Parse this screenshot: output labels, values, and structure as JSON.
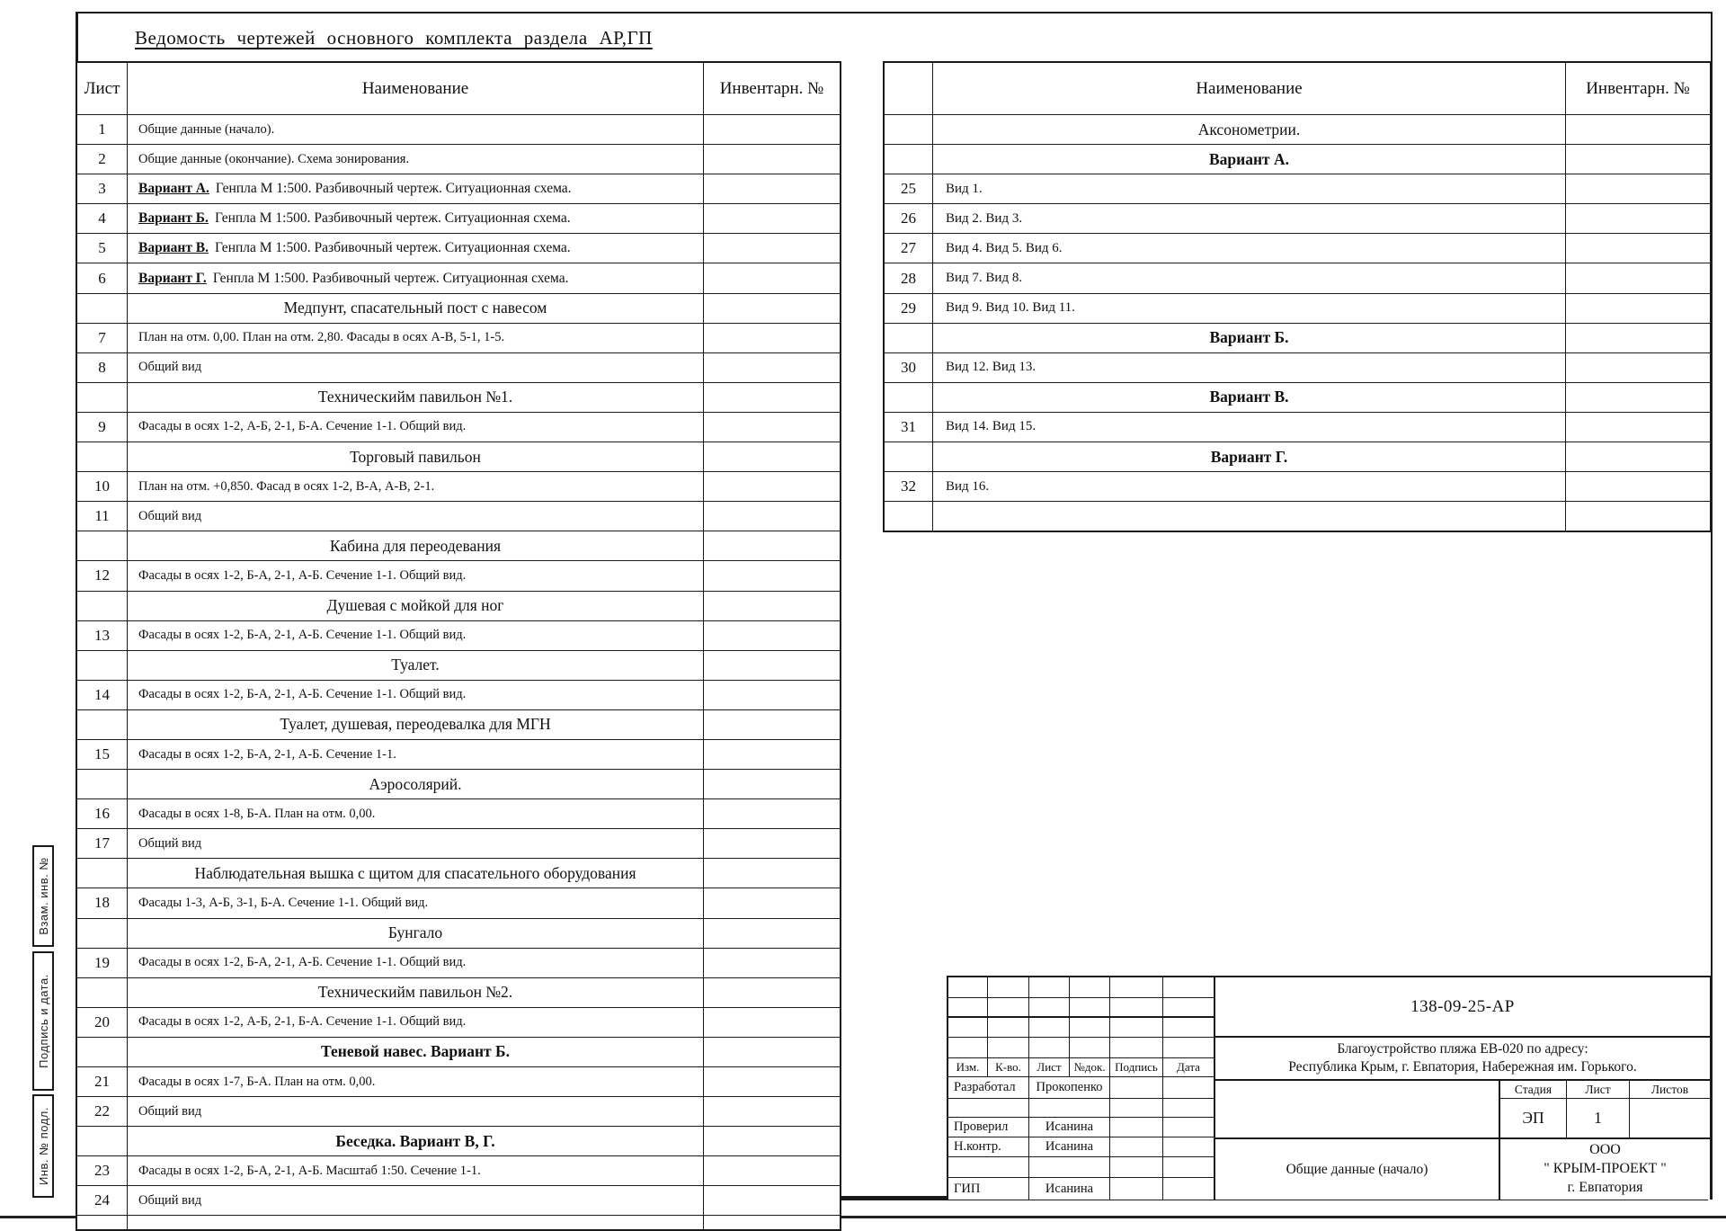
{
  "page": {
    "title": "Ведомость чертежей основного комплекта раздела АР,ГП"
  },
  "left_table": {
    "headers": {
      "sheet": "Лист",
      "name": "Наименование",
      "inv": "Инвентарн. №"
    },
    "rows": [
      {
        "num": "1",
        "text": "Общие данные (начало).",
        "type": "item"
      },
      {
        "num": "2",
        "text": "Общие данные (окончание). Схема зонирования.",
        "type": "item"
      },
      {
        "num": "3",
        "prefix": "Вариант А.",
        "text": "Генпла М 1:500. Разбивочный чертеж. Ситуационная схема.",
        "type": "item"
      },
      {
        "num": "4",
        "prefix": "Вариант Б.",
        "text": "Генпла М 1:500. Разбивочный чертеж. Ситуационная схема.",
        "type": "item"
      },
      {
        "num": "5",
        "prefix": "Вариант В.",
        "text": "Генпла М 1:500. Разбивочный чертеж. Ситуационная схема.",
        "type": "item"
      },
      {
        "num": "6",
        "prefix": "Вариант Г.",
        "text": "Генпла М 1:500. Разбивочный чертеж. Ситуационная схема.",
        "type": "item"
      },
      {
        "num": "",
        "text": "Медпунт, спасательный пост с навесом",
        "type": "section"
      },
      {
        "num": "7",
        "text": "План на отм. 0,00. План на отм. 2,80. Фасады в осях А-В, 5-1, 1-5.",
        "type": "item"
      },
      {
        "num": "8",
        "text": "Общий вид",
        "type": "item"
      },
      {
        "num": "",
        "text": "Техническийм павильон №1.",
        "type": "section"
      },
      {
        "num": "9",
        "text": "Фасады в осях 1-2, А-Б, 2-1, Б-А. Сечение 1-1. Общий вид.",
        "type": "item"
      },
      {
        "num": "",
        "text": "Торговый павильон",
        "type": "section"
      },
      {
        "num": "10",
        "text": "План на отм. +0,850. Фасад в осях 1-2, В-А, А-В, 2-1.",
        "type": "item"
      },
      {
        "num": "11",
        "text": "Общий вид",
        "type": "item"
      },
      {
        "num": "",
        "text": "Кабина для переодевания",
        "type": "section"
      },
      {
        "num": "12",
        "text": "Фасады в осях 1-2, Б-А, 2-1, А-Б. Сечение 1-1. Общий вид.",
        "type": "item"
      },
      {
        "num": "",
        "text": "Душевая с мойкой для ног",
        "type": "section"
      },
      {
        "num": "13",
        "text": "Фасады в осях 1-2, Б-А, 2-1, А-Б. Сечение 1-1. Общий вид.",
        "type": "item"
      },
      {
        "num": "",
        "text": "Туалет.",
        "type": "section"
      },
      {
        "num": "14",
        "text": "Фасады в осях 1-2, Б-А, 2-1, А-Б. Сечение 1-1. Общий вид.",
        "type": "item"
      },
      {
        "num": "",
        "text": "Туалет, душевая, переодевалка для МГН",
        "type": "section"
      },
      {
        "num": "15",
        "text": "Фасады в осях 1-2, Б-А, 2-1, А-Б. Сечение 1-1.",
        "type": "item"
      },
      {
        "num": "",
        "text": "Аэросолярий.",
        "type": "section"
      },
      {
        "num": "16",
        "text": "Фасады в осях 1-8, Б-А. План на отм. 0,00.",
        "type": "item"
      },
      {
        "num": "17",
        "text": "Общий вид",
        "type": "item"
      },
      {
        "num": "",
        "text": "Наблюдательная вышка с щитом для спасательного оборудования",
        "type": "section"
      },
      {
        "num": "18",
        "text": "Фасады 1-3, А-Б, 3-1, Б-А. Сечение 1-1. Общий вид.",
        "type": "item"
      },
      {
        "num": "",
        "text": "Бунгало",
        "type": "section"
      },
      {
        "num": "19",
        "text": "Фасады в осях 1-2, Б-А, 2-1, А-Б. Сечение 1-1. Общий вид.",
        "type": "item"
      },
      {
        "num": "",
        "text": "Техническийм павильон №2.",
        "type": "section"
      },
      {
        "num": "20",
        "text": "Фасады в осях 1-2, А-Б, 2-1, Б-А. Сечение 1-1. Общий вид.",
        "type": "item"
      },
      {
        "num": "",
        "text": "Теневой навес. Вариант Б.",
        "type": "section_bold"
      },
      {
        "num": "21",
        "text": "Фасады в осях 1-7, Б-А. План на отм. 0,00.",
        "type": "item"
      },
      {
        "num": "22",
        "text": "Общий вид",
        "type": "item"
      },
      {
        "num": "",
        "text": "Беседка. Вариант В, Г.",
        "type": "section_bold"
      },
      {
        "num": "23",
        "text": "Фасады в осях 1-2, Б-А, 2-1, А-Б. Масштаб 1:50. Сечение 1-1.",
        "type": "item"
      },
      {
        "num": "24",
        "text": "Общий вид",
        "type": "item"
      },
      {
        "num": "",
        "text": "",
        "type": "empty"
      }
    ]
  },
  "right_table": {
    "headers": {
      "sheet": "",
      "name": "Наименование",
      "inv": "Инвентарн. №"
    },
    "rows": [
      {
        "num": "",
        "text": "Аксонометрии.",
        "type": "section"
      },
      {
        "num": "",
        "text": "Вариант А.",
        "type": "section_bold"
      },
      {
        "num": "25",
        "text": "Вид 1.",
        "type": "item"
      },
      {
        "num": "26",
        "text": "Вид 2. Вид 3.",
        "type": "item"
      },
      {
        "num": "27",
        "text": "Вид 4. Вид 5. Вид 6.",
        "type": "item"
      },
      {
        "num": "28",
        "text": "Вид 7. Вид 8.",
        "type": "item"
      },
      {
        "num": "29",
        "text": "Вид 9. Вид 10. Вид 11.",
        "type": "item"
      },
      {
        "num": "",
        "text": "Вариант Б.",
        "type": "section_bold"
      },
      {
        "num": "30",
        "text": "Вид 12. Вид 13.",
        "type": "item"
      },
      {
        "num": "",
        "text": "Вариант В.",
        "type": "section_bold"
      },
      {
        "num": "31",
        "text": "Вид 14. Вид 15.",
        "type": "item"
      },
      {
        "num": "",
        "text": "Вариант Г.",
        "type": "section_bold"
      },
      {
        "num": "32",
        "text": "Вид 16.",
        "type": "item"
      },
      {
        "num": "",
        "text": "",
        "type": "empty"
      }
    ]
  },
  "side_labels": {
    "vzam": "Взам. инв. №",
    "podpis": "Подпись и дата.",
    "inv": "Инв. № подл."
  },
  "title_block": {
    "doc_number": "138-09-25-АР",
    "project_line1": "Благоустройство пляжа ЕВ-020 по адресу:",
    "project_line2": "Республика Крым, г. Евпатория, Набережная им. Горького.",
    "rev_headers": [
      "Изм.",
      "К-во.",
      "Лист",
      "№док.",
      "Подпись",
      "Дата"
    ],
    "signature_rows": [
      {
        "role": "Разработал",
        "name": "Прокопенко"
      },
      {
        "role": "",
        "name": ""
      },
      {
        "role": "Проверил",
        "name": "Исанина"
      },
      {
        "role": "Н.контр.",
        "name": "Исанина"
      },
      {
        "role": "",
        "name": ""
      },
      {
        "role": "ГИП",
        "name": "Исанина"
      }
    ],
    "stage_label": "Стадия",
    "sheet_label": "Лист",
    "sheets_label": "Листов",
    "stage_value": "ЭП",
    "sheet_value": "1",
    "sheets_value": "",
    "sheet_title": "Общие данные (начало)",
    "company_line1": "ООО",
    "company_line2": "\"  КРЫМ-ПРОЕКТ \"",
    "company_line3": "г. Евпатория"
  }
}
